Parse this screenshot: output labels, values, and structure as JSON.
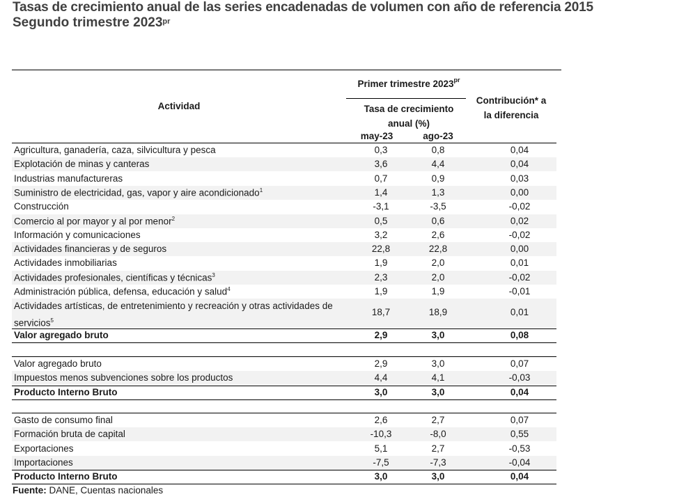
{
  "title_line1": "Tasas de crecimiento anual de las series encadenadas de volumen con año de referencia 2015",
  "title_line2": "Segundo trimestre 2023",
  "title_sup": "pr",
  "header": {
    "actividad": "Actividad",
    "period": "Primer trimestre 2023",
    "period_sup": "pr",
    "tasa_line1": "Tasa de crecimiento",
    "tasa_line2": "anual (%)",
    "col1": "may-23",
    "col2": "ago-23",
    "contrib_line1": "Contribución* a",
    "contrib_line2": "la diferencia"
  },
  "rows": [
    {
      "label": "Agricultura, ganadería, caza, silvicultura y pesca",
      "sup": "",
      "v1": "0,3",
      "v2": "0,8",
      "v3": "0,04"
    },
    {
      "label": "Explotación de minas y canteras",
      "sup": "",
      "v1": "3,6",
      "v2": "4,4",
      "v3": "0,04"
    },
    {
      "label": "Industrias manufactureras",
      "sup": "",
      "v1": "0,7",
      "v2": "0,9",
      "v3": "0,03"
    },
    {
      "label": "Suministro de electricidad, gas, vapor y aire acondicionado",
      "sup": "1",
      "v1": "1,4",
      "v2": "1,3",
      "v3": "0,00"
    },
    {
      "label": "Construcción",
      "sup": "",
      "v1": "-3,1",
      "v2": "-3,5",
      "v3": "-0,02"
    },
    {
      "label": "Comercio al por mayor y al por menor",
      "sup": "2",
      "v1": "0,5",
      "v2": "0,6",
      "v3": "0,02"
    },
    {
      "label": "Información y comunicaciones",
      "sup": "",
      "v1": "3,2",
      "v2": "2,6",
      "v3": "-0,02"
    },
    {
      "label": "Actividades financieras y de seguros",
      "sup": "",
      "v1": "22,8",
      "v2": "22,8",
      "v3": "0,00"
    },
    {
      "label": "Actividades inmobiliarias",
      "sup": "",
      "v1": "1,9",
      "v2": "2,0",
      "v3": "0,01"
    },
    {
      "label": "Actividades profesionales, científicas y técnicas",
      "sup": "3",
      "v1": "2,3",
      "v2": "2,0",
      "v3": "-0,02"
    },
    {
      "label": "Administración pública, defensa, educación y salud",
      "sup": "4",
      "v1": "1,9",
      "v2": "1,9",
      "v3": "-0,01"
    },
    {
      "label": "Actividades artísticas, de entretenimiento y recreación y otras actividades de servicios",
      "sup": "5",
      "v1": "18,7",
      "v2": "18,9",
      "v3": "0,01"
    },
    {
      "label": "Valor agregado bruto",
      "sup": "",
      "v1": "2,9",
      "v2": "3,0",
      "v3": "0,08"
    }
  ],
  "rows2": [
    {
      "label": "Valor agregado bruto",
      "v1": "2,9",
      "v2": "3,0",
      "v3": "0,07"
    },
    {
      "label": "Impuestos menos subvenciones sobre los productos",
      "v1": "4,4",
      "v2": "4,1",
      "v3": "-0,03"
    },
    {
      "label": "Producto Interno Bruto",
      "v1": "3,0",
      "v2": "3,0",
      "v3": "0,04"
    }
  ],
  "rows3": [
    {
      "label": "Gasto de consumo final",
      "v1": "2,6",
      "v2": "2,7",
      "v3": "0,07"
    },
    {
      "label": "Formación bruta de capital",
      "v1": "-10,3",
      "v2": "-8,0",
      "v3": "0,55"
    },
    {
      "label": "Exportaciones",
      "v1": "5,1",
      "v2": "2,7",
      "v3": "-0,53"
    },
    {
      "label": "Importaciones",
      "v1": "-7,5",
      "v2": "-7,3",
      "v3": "-0,04"
    },
    {
      "label": "Producto Interno Bruto",
      "v1": "3,0",
      "v2": "3,0",
      "v3": "0,04"
    }
  ],
  "source_label": "Fuente:",
  "source_text": "DANE,  Cuentas nacionales"
}
